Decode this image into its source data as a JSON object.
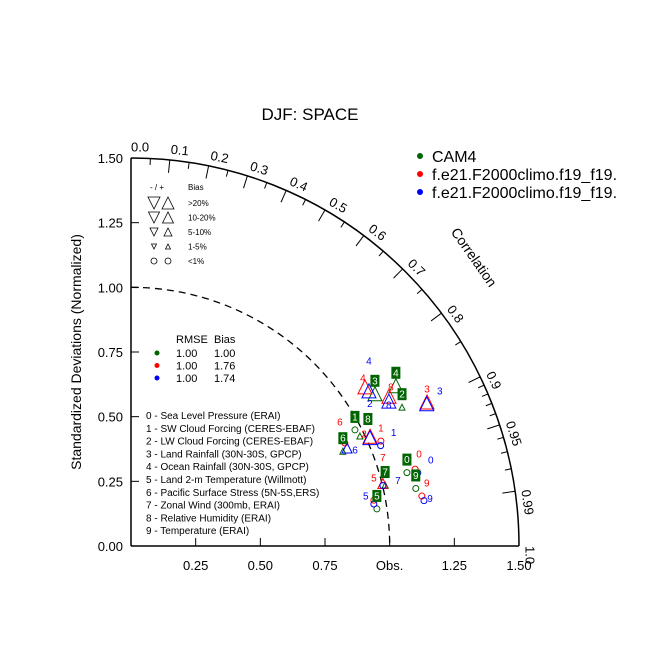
{
  "chart_data": {
    "type": "scatter",
    "subtype": "taylor-diagram",
    "title": "DJF: SPACE",
    "ylabel": "Standardized Deviations (Normalized)",
    "arc_label": "Correlation",
    "x_ticks": [
      "0.25",
      "0.50",
      "0.75",
      "Obs.",
      "1.25",
      "1.50"
    ],
    "x_tick_values": [
      0.25,
      0.5,
      0.75,
      1.0,
      1.25,
      1.5
    ],
    "y_ticks": [
      "0.00",
      "0.25",
      "0.50",
      "0.75",
      "1.00",
      "1.25",
      "1.50"
    ],
    "y_tick_values": [
      0,
      0.25,
      0.5,
      0.75,
      1.0,
      1.25,
      1.5
    ],
    "corr_ticks": [
      "0.0",
      "0.1",
      "0.2",
      "0.3",
      "0.4",
      "0.5",
      "0.6",
      "0.7",
      "0.8",
      "0.9",
      "0.95",
      "0.99",
      "1.0"
    ],
    "std_range": [
      0,
      1.5
    ],
    "reference_arc": 1.0,
    "series": [
      {
        "name": "CAM4",
        "color": "#006400",
        "rmse": "1.00",
        "bias": "1.00",
        "points": [
          {
            "label": "0",
            "std": 1.11,
            "corr": 0.961,
            "marker": "circle"
          },
          {
            "label": "1",
            "std": 0.986,
            "corr": 0.878,
            "marker": "circle"
          },
          {
            "label": "2",
            "std": 1.188,
            "corr": 0.882,
            "marker": "up-sm"
          },
          {
            "label": "3",
            "std": 1.124,
            "corr": 0.839,
            "marker": "up-lg"
          },
          {
            "label": "4",
            "std": 1.209,
            "corr": 0.847,
            "marker": "up-lg"
          },
          {
            "label": "5",
            "std": 0.965,
            "corr": 0.985,
            "marker": "circle"
          },
          {
            "label": "6",
            "std": 0.907,
            "corr": 0.903,
            "marker": "up-sm"
          },
          {
            "label": "7",
            "std": 1.016,
            "corr": 0.967,
            "marker": "up-sm"
          },
          {
            "label": "8",
            "std": 0.992,
            "corr": 0.892,
            "marker": "up-sm"
          },
          {
            "label": "9",
            "std": 1.128,
            "corr": 0.976,
            "marker": "circle"
          }
        ]
      },
      {
        "name": "f.e21.F2000climo.f19_f19.",
        "color": "#ff0000",
        "rmse": "1.00",
        "bias": "1.76",
        "points": [
          {
            "label": "0",
            "std": 1.144,
            "corr": 0.96,
            "marker": "circle"
          },
          {
            "label": "1",
            "std": 1.057,
            "corr": 0.914,
            "marker": "circle"
          },
          {
            "label": "2",
            "std": 1.027,
            "corr": 0.9,
            "marker": "up-lg"
          },
          {
            "label": "3",
            "std": 1.283,
            "corr": 0.892,
            "marker": "up-lg"
          },
          {
            "label": "4",
            "std": 1.107,
            "corr": 0.817,
            "marker": "up-lg"
          },
          {
            "label": "5",
            "std": 0.96,
            "corr": 0.978,
            "marker": "circle"
          },
          {
            "label": "6",
            "std": 0.928,
            "corr": 0.891,
            "marker": "circle"
          },
          {
            "label": "7",
            "std": 1.009,
            "corr": 0.965,
            "marker": "up-md"
          },
          {
            "label": "8",
            "std": 1.165,
            "corr": 0.856,
            "marker": "up-lg"
          },
          {
            "label": "9",
            "std": 1.145,
            "corr": 0.982,
            "marker": "circle"
          }
        ]
      },
      {
        "name": "f.e21.F2000climo.f19_f19.",
        "color": "#0000ff",
        "rmse": "1.00",
        "bias": "1.74",
        "points": [
          {
            "label": "0",
            "std": 1.15,
            "corr": 0.964,
            "marker": "circle"
          },
          {
            "label": "1",
            "std": 1.049,
            "corr": 0.92,
            "marker": "circle"
          },
          {
            "label": "2",
            "std": 1.024,
            "corr": 0.902,
            "marker": "up-lg"
          },
          {
            "label": "3",
            "std": 1.279,
            "corr": 0.894,
            "marker": "up-lg"
          },
          {
            "label": "4",
            "std": 1.111,
            "corr": 0.828,
            "marker": "up-lg"
          },
          {
            "label": "5",
            "std": 0.957,
            "corr": 0.981,
            "marker": "circle"
          },
          {
            "label": "6",
            "std": 0.927,
            "corr": 0.901,
            "marker": "up-md"
          },
          {
            "label": "7",
            "std": 1.007,
            "corr": 0.967,
            "marker": "circle"
          },
          {
            "label": "8",
            "std": 1.155,
            "corr": 0.863,
            "marker": "up-lg"
          },
          {
            "label": "9",
            "std": 1.15,
            "corr": 0.985,
            "marker": "circle"
          }
        ]
      }
    ],
    "legend_placement": "top-right",
    "stats_legend": {
      "rmse_header": "RMSE",
      "bias_header": "Bias"
    },
    "bias_legend": {
      "header_sign": "- / +",
      "header_bias": "Bias",
      "rows": [
        ">20%",
        "10-20%",
        "5-10%",
        "1-5%",
        "<1%"
      ]
    },
    "variables": [
      "0 - Sea Level Pressure (ERAI)",
      "1 - SW Cloud Forcing (CERES-EBAF)",
      "2 - LW Cloud Forcing (CERES-EBAF)",
      "3 - Land Rainfall (30N-30S, GPCP)",
      "4 - Ocean Rainfall (30N-30S, GPCP)",
      "5 - Land 2-m Temperature (Willmott)",
      "6 - Pacific Surface Stress (5N-5S,ERS)",
      "7 - Zonal Wind (300mb, ERAI)",
      "8 - Relative Humidity (ERAI)",
      "9 - Temperature (ERAI)"
    ]
  }
}
